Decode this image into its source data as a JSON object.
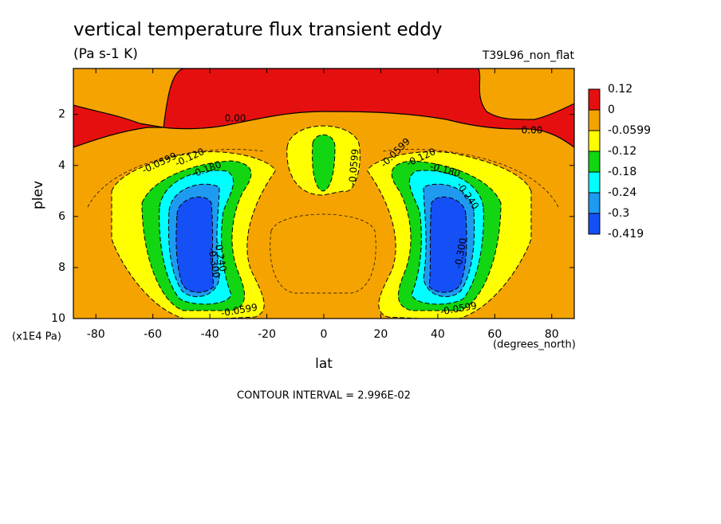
{
  "chart_data": {
    "type": "contour",
    "title": "vertical temperature flux transient eddy",
    "units": "(Pa s-1 K)",
    "run_label": "T39L96_non_flat",
    "x_label": "lat",
    "x_units": "(degrees_north)",
    "y_label": "plev",
    "y_units": "(x1E4 Pa)",
    "footer": "CONTOUR INTERVAL = 2.996E-02",
    "xlim": [
      -87.9,
      87.9
    ],
    "xticks": [
      -80,
      -60,
      -40,
      -20,
      0,
      20,
      40,
      60,
      80
    ],
    "ylim": [
      10,
      0.2
    ],
    "yticks": [
      2,
      4,
      6,
      8,
      10
    ],
    "levels": [
      0.12,
      0,
      -0.0599,
      -0.12,
      -0.18,
      -0.24,
      -0.3,
      -0.419
    ],
    "colors": [
      "#e60f0f",
      "#f5a300",
      "#ffff00",
      "#11d611",
      "#00ffff",
      "#1e9bf0",
      "#1450f5"
    ],
    "contour_labels": [
      "0.00",
      "0.00",
      "-0.0599",
      "-0.120",
      "-0.180",
      "-0.0599",
      "-0.0599",
      "-0.120",
      "-0.180",
      "-0.240",
      "-0.300",
      "-0.240",
      "-0.300",
      "-0.0599",
      "-0.0599"
    ]
  }
}
